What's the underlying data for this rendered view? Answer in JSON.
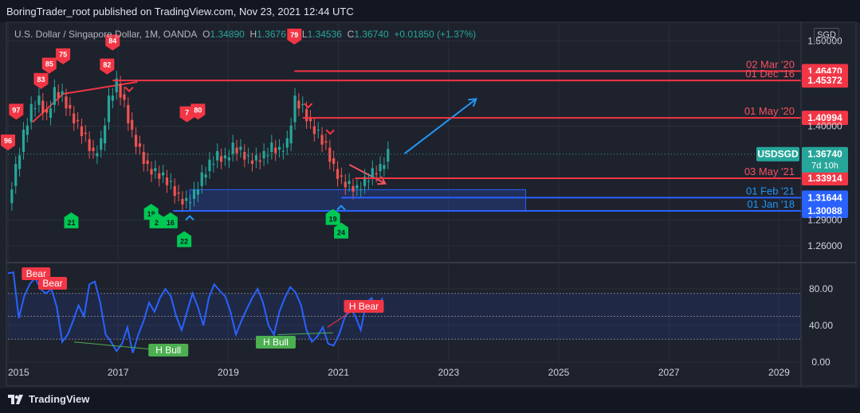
{
  "header": {
    "publisher_text": "BoringTrader_root published on TradingView.com, Nov 23, 2021 12:44 UTC"
  },
  "legend": {
    "symbol": "U.S. Dollar / Singapore Dollar, 1M, OANDA",
    "o_label": "O",
    "o_value": "1.34890",
    "h_label": "H",
    "h_value": "1.3676",
    "l_label": "L",
    "l_value": "1.34536",
    "c_label": "C",
    "c_value": "1.36740",
    "change": "+0.01850 (+1.37%)"
  },
  "currency_label": "SGD",
  "footer": {
    "brand": "TradingView"
  },
  "colors": {
    "bg": "#1e222d",
    "up": "#26a69a",
    "down": "#ef5350",
    "level_red": "#f23645",
    "level_blue": "#2962ff",
    "osc": "#2962ff",
    "bear_label": "#f23645",
    "bull_label": "#4caf50",
    "arrow": "#2196f3"
  },
  "chart_data": [
    {
      "type": "candlestick",
      "title": "U.S. Dollar / Singapore Dollar, 1M, OANDA",
      "ylim": [
        1.245,
        1.52
      ],
      "y_ticks": [
        "1.50000",
        "1.46470",
        "1.45372",
        "1.40994",
        "1.40000",
        "1.36740",
        "1.33914",
        "1.31644",
        "1.30088",
        "1.29000",
        "1.26000"
      ],
      "x_ticks": [
        "2015",
        "2017",
        "2019",
        "2021",
        "2023",
        "2025",
        "2027",
        "2029"
      ],
      "price_trend": [
        1.31,
        1.35,
        1.39,
        1.42,
        1.43,
        1.41,
        1.44,
        1.435,
        1.415,
        1.4,
        1.385,
        1.365,
        1.38,
        1.43,
        1.45,
        1.425,
        1.39,
        1.37,
        1.35,
        1.345,
        1.34,
        1.33,
        1.315,
        1.31,
        1.32,
        1.34,
        1.355,
        1.365,
        1.36,
        1.375,
        1.37,
        1.36,
        1.36,
        1.365,
        1.375,
        1.37,
        1.38,
        1.43,
        1.42,
        1.4,
        1.39,
        1.375,
        1.35,
        1.335,
        1.33,
        1.325,
        1.335,
        1.345,
        1.35,
        1.3674
      ],
      "horizontal_levels": [
        {
          "label": "02 Mar '20",
          "value": "1.46470",
          "color": "#f23645"
        },
        {
          "label": "01 Dec '16",
          "value": "1.45372",
          "color": "#f23645"
        },
        {
          "label": "01 May '20",
          "value": "1.40994",
          "color": "#f23645"
        },
        {
          "label": "03 May '21",
          "value": "1.33914",
          "color": "#f23645"
        },
        {
          "label": "01 Feb '21",
          "value": "1.31644",
          "color": "#2962ff"
        },
        {
          "label": "01 Jan '18",
          "value": "1.30088",
          "color": "#2962ff"
        }
      ],
      "current_price": {
        "symbol": "USDSGD",
        "value": "1.36740",
        "countdown": "7d 10h"
      },
      "sell_markers": [
        "97",
        "96",
        "83",
        "85",
        "75",
        "84",
        "82",
        "79",
        "7",
        "80"
      ],
      "buy_markers": [
        "21",
        "19",
        "2",
        "16",
        "22",
        "19",
        "24"
      ]
    },
    {
      "type": "line",
      "title": "",
      "ylim": [
        0,
        100
      ],
      "y_ticks": [
        "80.00",
        "40.00",
        "0.00"
      ],
      "series": [
        {
          "values": [
            97,
            98,
            48,
            72,
            85,
            92,
            80,
            75,
            80,
            60,
            22,
            30,
            45,
            62,
            50,
            85,
            88,
            65,
            30,
            22,
            12,
            20,
            38,
            10,
            30,
            45,
            65,
            55,
            70,
            80,
            72,
            50,
            35,
            55,
            75,
            60,
            40,
            70,
            85,
            78,
            72,
            55,
            30,
            45,
            58,
            70,
            80,
            65,
            40,
            30,
            55,
            70,
            82,
            76,
            62,
            35,
            22,
            28,
            38,
            20,
            18,
            30,
            48,
            60,
            50,
            35,
            65,
            70,
            55,
            70
          ]
        }
      ],
      "annotations": [
        "Bear",
        "Bear",
        "H Bull",
        "H Bear",
        "H Bull"
      ]
    }
  ]
}
